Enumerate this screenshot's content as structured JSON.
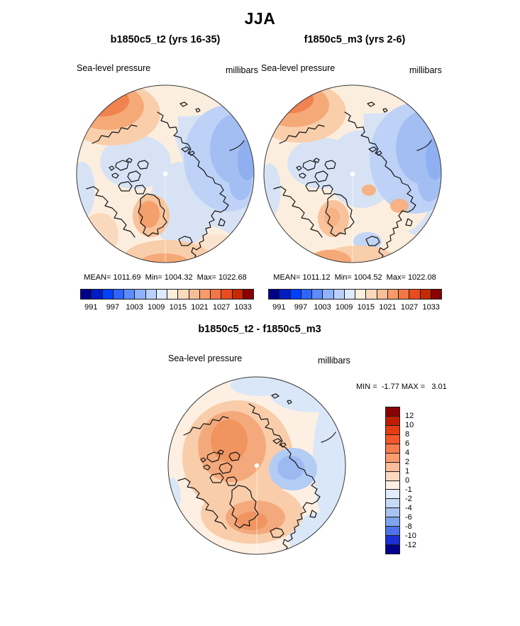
{
  "page": {
    "title": "JJA"
  },
  "panels": [
    {
      "title": "b1850c5_t2 (yrs 16-35)",
      "field": "Sea-level pressure",
      "units": "millibars",
      "stats": "MEAN= 1011.69  Min= 1004.32  Max= 1022.68",
      "colorbar": {
        "orientation": "horizontal",
        "n_cells": 16,
        "colors": [
          "#00008B",
          "#001CC4",
          "#0040FF",
          "#2E64FF",
          "#5E8CFF",
          "#8FB2FF",
          "#BAD1FF",
          "#DCE9FF",
          "#FDEEDC",
          "#FBD9BC",
          "#F9BE96",
          "#F79B69",
          "#F27745",
          "#E84B1E",
          "#C62A00",
          "#8B0000"
        ],
        "tick_labels": [
          "991",
          "997",
          "1003",
          "1009",
          "1015",
          "1021",
          "1027",
          "1033"
        ],
        "tick_boundaries": [
          1,
          3,
          5,
          7,
          9,
          11,
          13,
          15
        ]
      }
    },
    {
      "title": "f1850c5_m3 (yrs 2-6)",
      "field": "Sea-level pressure",
      "units": "millibars",
      "stats": "MEAN= 1011.12  Min= 1004.52  Max= 1022.08",
      "colorbar": {
        "orientation": "horizontal",
        "n_cells": 16,
        "colors": [
          "#00008B",
          "#001CC4",
          "#0040FF",
          "#2E64FF",
          "#5E8CFF",
          "#8FB2FF",
          "#BAD1FF",
          "#DCE9FF",
          "#FDEEDC",
          "#FBD9BC",
          "#F9BE96",
          "#F79B69",
          "#F27745",
          "#E84B1E",
          "#C62A00",
          "#8B0000"
        ],
        "tick_labels": [
          "991",
          "997",
          "1003",
          "1009",
          "1015",
          "1021",
          "1027",
          "1033"
        ],
        "tick_boundaries": [
          1,
          3,
          5,
          7,
          9,
          11,
          13,
          15
        ]
      }
    },
    {
      "title": "b1850c5_t2 - f1850c5_m3",
      "field": "Sea-level pressure",
      "units": "millibars",
      "stats": "MIN =  -1.77 MAX =   3.01",
      "colorbar": {
        "orientation": "vertical",
        "n_cells": 16,
        "colors": [
          "#8B0000",
          "#BE1E00",
          "#E63C12",
          "#F4562A",
          "#F77C4D",
          "#FA9C70",
          "#FBBD98",
          "#FDD9C1",
          "#FEF0E2",
          "#E2ECFA",
          "#C6D9F6",
          "#A6C3F2",
          "#7FA4EE",
          "#4C74E8",
          "#1B2FD4",
          "#00008B"
        ],
        "tick_labels": [
          "12",
          "10",
          "8",
          "6",
          "4",
          "2",
          "1",
          "0",
          "-1",
          "-2",
          "-4",
          "-6",
          "-8",
          "-10",
          "-12"
        ],
        "tick_boundaries": [
          1,
          2,
          3,
          4,
          5,
          6,
          7,
          8,
          9,
          10,
          11,
          12,
          13,
          14,
          15
        ]
      }
    }
  ],
  "chart_data": [
    {
      "type": "heatmap",
      "subtype": "north-polar-stereographic-filled-contour-map",
      "season": "JJA",
      "title": "b1850c5_t2 (yrs 16-35)",
      "variable": "Sea-level pressure",
      "units": "millibars",
      "mean": 1011.69,
      "min": 1004.32,
      "max": 1022.68,
      "contour_tick_levels": [
        991,
        997,
        1003,
        1009,
        1015,
        1021,
        1027,
        1033
      ],
      "palette_steps": 16,
      "palette_style": "blue-white-red",
      "legend_position": "bottom-horizontal"
    },
    {
      "type": "heatmap",
      "subtype": "north-polar-stereographic-filled-contour-map",
      "season": "JJA",
      "title": "f1850c5_m3 (yrs 2-6)",
      "variable": "Sea-level pressure",
      "units": "millibars",
      "mean": 1011.12,
      "min": 1004.52,
      "max": 1022.08,
      "contour_tick_levels": [
        991,
        997,
        1003,
        1009,
        1015,
        1021,
        1027,
        1033
      ],
      "palette_steps": 16,
      "palette_style": "blue-white-red",
      "legend_position": "bottom-horizontal"
    },
    {
      "type": "heatmap",
      "subtype": "north-polar-stereographic-filled-contour-map",
      "season": "JJA",
      "title": "b1850c5_t2 - f1850c5_m3",
      "variable": "Sea-level pressure difference",
      "units": "millibars",
      "min": -1.77,
      "max": 3.01,
      "contour_tick_levels": [
        12,
        10,
        8,
        6,
        4,
        2,
        1,
        0,
        -1,
        -2,
        -4,
        -6,
        -8,
        -10,
        -12
      ],
      "palette_steps": 16,
      "palette_style": "red-white-blue (top warm)",
      "legend_position": "right-vertical"
    }
  ]
}
